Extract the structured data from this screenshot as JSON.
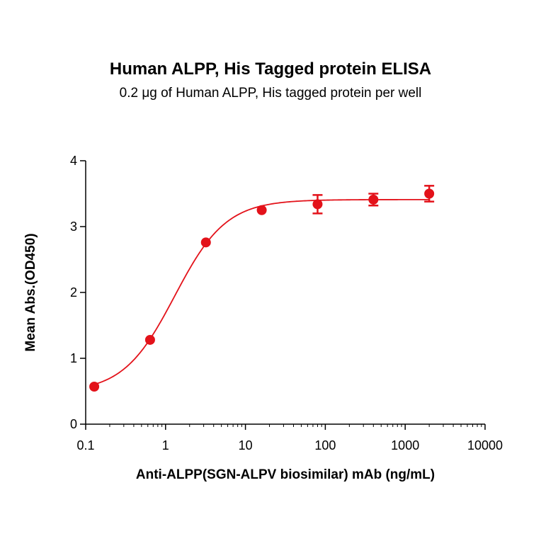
{
  "chart_data": {
    "type": "scatter",
    "title": "Human ALPP, His Tagged protein ELISA",
    "subtitle": "0.2 μg of Human ALPP, His tagged protein per well",
    "xlabel": "Anti-ALPP(SGN-ALPV biosimilar) mAb  (ng/mL)",
    "ylabel": "Mean Abs.(OD450)",
    "x_scale": "log",
    "xlim": [
      0.1,
      10000
    ],
    "ylim": [
      0,
      4
    ],
    "x_ticks": [
      "0.1",
      "1",
      "10",
      "100",
      "1000",
      "10000"
    ],
    "y_ticks": [
      "0",
      "1",
      "2",
      "3",
      "4"
    ],
    "color": "#e3121a",
    "series": [
      {
        "points": [
          {
            "x": 0.128,
            "y": 0.57,
            "err": 0.02
          },
          {
            "x": 0.64,
            "y": 1.28,
            "err": 0.03
          },
          {
            "x": 3.2,
            "y": 2.76,
            "err": 0.03
          },
          {
            "x": 16,
            "y": 3.25,
            "err": 0.03
          },
          {
            "x": 80,
            "y": 3.34,
            "err": 0.14
          },
          {
            "x": 400,
            "y": 3.41,
            "err": 0.09
          },
          {
            "x": 2000,
            "y": 3.5,
            "err": 0.12
          }
        ],
        "fit": {
          "model": "4PL",
          "bottom": 0.48,
          "top": 3.41,
          "ec50": 1.3,
          "hill": 1.35
        }
      }
    ]
  }
}
